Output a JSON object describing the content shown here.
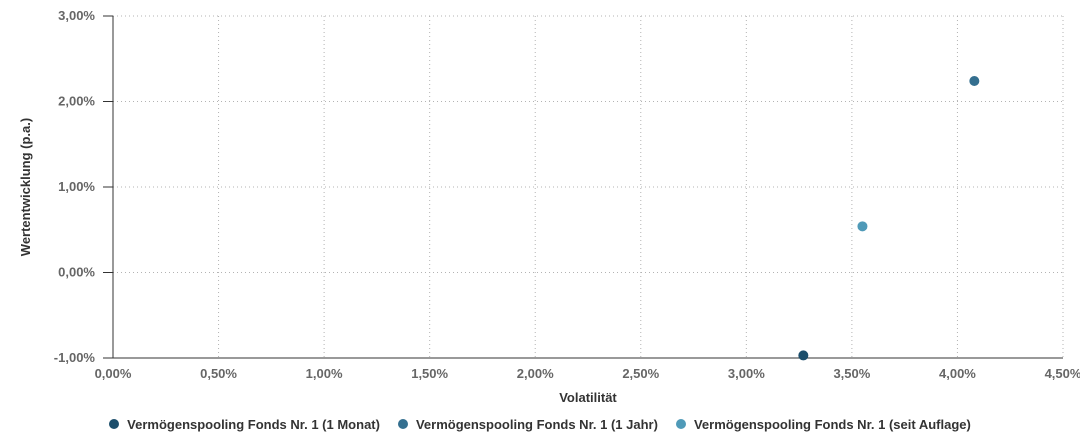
{
  "chart_data": {
    "type": "scatter",
    "title": "",
    "xlabel": "Volatilität",
    "ylabel": "Wertentwicklung (p.a.)",
    "xlim": [
      0,
      4.5
    ],
    "ylim": [
      -1,
      3
    ],
    "x_ticks": [
      0,
      0.5,
      1,
      1.5,
      2,
      2.5,
      3,
      3.5,
      4,
      4.5
    ],
    "y_ticks": [
      -1,
      0,
      1,
      2,
      3
    ],
    "x_tick_labels": [
      "0,00%",
      "0,50%",
      "1,00%",
      "1,50%",
      "2,00%",
      "2,50%",
      "3,00%",
      "3,50%",
      "4,00%",
      "4,50%"
    ],
    "y_tick_labels": [
      "-1,00%",
      "0,00%",
      "1,00%",
      "2,00%",
      "3,00%"
    ],
    "grid": true,
    "legend_position": "bottom-center",
    "series": [
      {
        "name": "Vermögenspooling Fonds Nr. 1 (1 Monat)",
        "color": "#1c4e6b",
        "points": [
          {
            "x": 3.27,
            "y": -0.97
          }
        ]
      },
      {
        "name": "Vermögenspooling Fonds Nr. 1 (1 Jahr)",
        "color": "#346f8f",
        "points": [
          {
            "x": 4.08,
            "y": 2.24
          }
        ]
      },
      {
        "name": "Vermögenspooling Fonds Nr. 1 (seit Auflage)",
        "color": "#4f9ab8",
        "points": [
          {
            "x": 3.55,
            "y": 0.54
          }
        ]
      }
    ]
  }
}
